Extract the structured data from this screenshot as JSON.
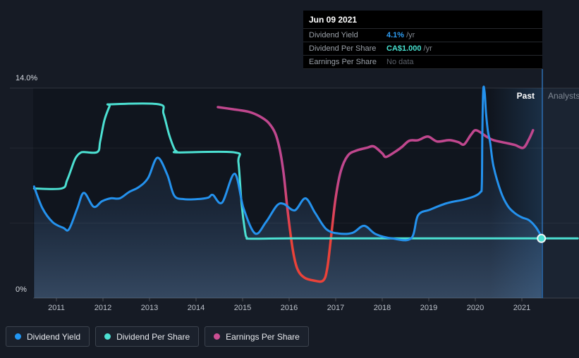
{
  "tooltip": {
    "date": "Jun 09 2021",
    "rows": [
      {
        "label": "Dividend Yield",
        "value": "4.1%",
        "suffix": "/yr",
        "color": "#2f9ef4"
      },
      {
        "label": "Dividend Per Share",
        "value": "CA$1.000",
        "suffix": "/yr",
        "color": "#47e0cf"
      },
      {
        "label": "Earnings Per Share",
        "value": "No data",
        "suffix": "",
        "color": "#5b6069"
      }
    ]
  },
  "axis": {
    "y_top_label": "14.0%",
    "y_bottom_label": "0%",
    "years": [
      "2011",
      "2012",
      "2013",
      "2014",
      "2015",
      "2016",
      "2017",
      "2018",
      "2019",
      "2020",
      "2021"
    ]
  },
  "regions": {
    "past_label": "Past",
    "analysts_label": "Analysts"
  },
  "legend": [
    {
      "label": "Dividend Yield",
      "color": "#2196f3"
    },
    {
      "label": "Dividend Per Share",
      "color": "#4ce0d2"
    },
    {
      "label": "Earnings Per Share",
      "color": "#cb4f93"
    }
  ],
  "colors": {
    "yield_line": "#2492ee",
    "dps_line": "#4ce0d2",
    "eps_positive": "#c0478e",
    "eps_negative": "#ea4239",
    "today_line": "#2d6fb4",
    "page_bg": "#161b25",
    "plot_bg": "#10151e",
    "analyst_bg": "#1b2432",
    "tooltip_bg": "#000000"
  },
  "chart_data": {
    "type": "line",
    "title": "Dividend history with tooltip at Jun 09 2021",
    "x_range": [
      2010.5,
      2022.2
    ],
    "today_x": 2021.44,
    "y_axis": {
      "unit": "% (dividend yield axis; DPS/EPS plotted on same visual scale)",
      "min": 0,
      "max": 14,
      "gridlines": [
        0,
        5,
        10,
        14
      ]
    },
    "legend_position": "bottom-left",
    "grid": true,
    "marker": {
      "x": 2021.42,
      "value": 3.98,
      "series": "Dividend Per Share",
      "note": "CA$1.000 /yr at marker"
    },
    "series": [
      {
        "name": "Dividend Yield",
        "unit": "%",
        "points": [
          [
            2010.52,
            7.44
          ],
          [
            2010.7,
            5.99
          ],
          [
            2010.92,
            5.06
          ],
          [
            2011.15,
            4.68
          ],
          [
            2011.27,
            4.59
          ],
          [
            2011.45,
            5.99
          ],
          [
            2011.59,
            7.02
          ],
          [
            2011.8,
            6.09
          ],
          [
            2011.98,
            6.46
          ],
          [
            2012.17,
            6.65
          ],
          [
            2012.36,
            6.65
          ],
          [
            2012.56,
            7.07
          ],
          [
            2012.77,
            7.4
          ],
          [
            2012.97,
            8.01
          ],
          [
            2013.17,
            9.36
          ],
          [
            2013.38,
            8.24
          ],
          [
            2013.53,
            6.84
          ],
          [
            2013.73,
            6.6
          ],
          [
            2014.03,
            6.6
          ],
          [
            2014.26,
            6.7
          ],
          [
            2014.36,
            6.88
          ],
          [
            2014.56,
            6.37
          ],
          [
            2014.83,
            8.29
          ],
          [
            2015.02,
            5.99
          ],
          [
            2015.27,
            4.31
          ],
          [
            2015.5,
            5.06
          ],
          [
            2015.74,
            6.18
          ],
          [
            2015.89,
            6.27
          ],
          [
            2016.12,
            5.85
          ],
          [
            2016.35,
            6.65
          ],
          [
            2016.56,
            5.67
          ],
          [
            2016.8,
            4.59
          ],
          [
            2017.06,
            4.31
          ],
          [
            2017.36,
            4.35
          ],
          [
            2017.61,
            4.82
          ],
          [
            2017.86,
            4.26
          ],
          [
            2018.21,
            3.98
          ],
          [
            2018.62,
            3.98
          ],
          [
            2018.77,
            5.52
          ],
          [
            2019.03,
            5.9
          ],
          [
            2019.38,
            6.32
          ],
          [
            2019.74,
            6.56
          ],
          [
            2019.98,
            6.79
          ],
          [
            2020.11,
            7.07
          ],
          [
            2020.14,
            7.54
          ],
          [
            2020.15,
            10.82
          ],
          [
            2020.17,
            13.86
          ],
          [
            2020.2,
            13.72
          ],
          [
            2020.23,
            12.31
          ],
          [
            2020.27,
            11.14
          ],
          [
            2020.32,
            10.35
          ],
          [
            2020.39,
            8.8
          ],
          [
            2020.55,
            7.07
          ],
          [
            2020.7,
            6.13
          ],
          [
            2020.85,
            5.66
          ],
          [
            2021.0,
            5.38
          ],
          [
            2021.15,
            5.2
          ],
          [
            2021.3,
            4.73
          ],
          [
            2021.42,
            4.1
          ]
        ]
      },
      {
        "name": "Dividend Per Share",
        "unit": "axis-units (current level = CA$1.000 /yr)",
        "points": [
          [
            2010.52,
            7.31
          ],
          [
            2011.11,
            7.31
          ],
          [
            2011.23,
            7.87
          ],
          [
            2011.38,
            9.13
          ],
          [
            2011.45,
            9.51
          ],
          [
            2011.52,
            9.69
          ],
          [
            2011.58,
            9.74
          ],
          [
            2011.88,
            9.74
          ],
          [
            2011.94,
            10.44
          ],
          [
            2012.03,
            11.85
          ],
          [
            2012.14,
            12.78
          ],
          [
            2012.18,
            12.92
          ],
          [
            2013.2,
            12.92
          ],
          [
            2013.3,
            12.31
          ],
          [
            2013.42,
            10.91
          ],
          [
            2013.53,
            9.97
          ],
          [
            2013.58,
            9.79
          ],
          [
            2013.62,
            9.71
          ],
          [
            2014.83,
            9.71
          ],
          [
            2014.91,
            9.04
          ],
          [
            2014.98,
            6.23
          ],
          [
            2015.05,
            4.49
          ],
          [
            2015.09,
            4.03
          ],
          [
            2015.18,
            3.96
          ],
          [
            2016.0,
            3.98
          ],
          [
            2018.0,
            3.98
          ],
          [
            2020.0,
            3.98
          ],
          [
            2021.42,
            3.98
          ],
          [
            2022.2,
            3.98
          ]
        ]
      },
      {
        "name": "Earnings Per Share",
        "unit": "axis-units (negative values shown red; No data at today)",
        "points": [
          [
            2014.47,
            12.73
          ],
          [
            2014.79,
            12.59
          ],
          [
            2015.14,
            12.41
          ],
          [
            2015.36,
            12.13
          ],
          [
            2015.55,
            11.71
          ],
          [
            2015.7,
            11.0
          ],
          [
            2015.8,
            9.88
          ],
          [
            2015.88,
            8.33
          ],
          [
            2015.97,
            5.76
          ],
          [
            2016.08,
            3.18
          ],
          [
            2016.18,
            1.92
          ],
          [
            2016.33,
            1.36
          ],
          [
            2016.53,
            1.17
          ],
          [
            2016.73,
            1.17
          ],
          [
            2016.82,
            2.01
          ],
          [
            2016.91,
            4.35
          ],
          [
            2017.0,
            6.7
          ],
          [
            2017.11,
            8.47
          ],
          [
            2017.26,
            9.5
          ],
          [
            2017.44,
            9.83
          ],
          [
            2017.67,
            10.02
          ],
          [
            2017.82,
            10.11
          ],
          [
            2018.0,
            9.65
          ],
          [
            2018.08,
            9.41
          ],
          [
            2018.27,
            9.74
          ],
          [
            2018.42,
            10.07
          ],
          [
            2018.58,
            10.49
          ],
          [
            2018.77,
            10.53
          ],
          [
            2018.98,
            10.77
          ],
          [
            2019.18,
            10.44
          ],
          [
            2019.44,
            10.53
          ],
          [
            2019.64,
            10.39
          ],
          [
            2019.76,
            10.25
          ],
          [
            2019.91,
            10.91
          ],
          [
            2020.02,
            11.19
          ],
          [
            2020.24,
            10.77
          ],
          [
            2020.39,
            10.53
          ],
          [
            2020.65,
            10.35
          ],
          [
            2020.85,
            10.21
          ],
          [
            2021.03,
            10.02
          ],
          [
            2021.15,
            10.58
          ],
          [
            2021.24,
            11.19
          ]
        ]
      }
    ]
  }
}
